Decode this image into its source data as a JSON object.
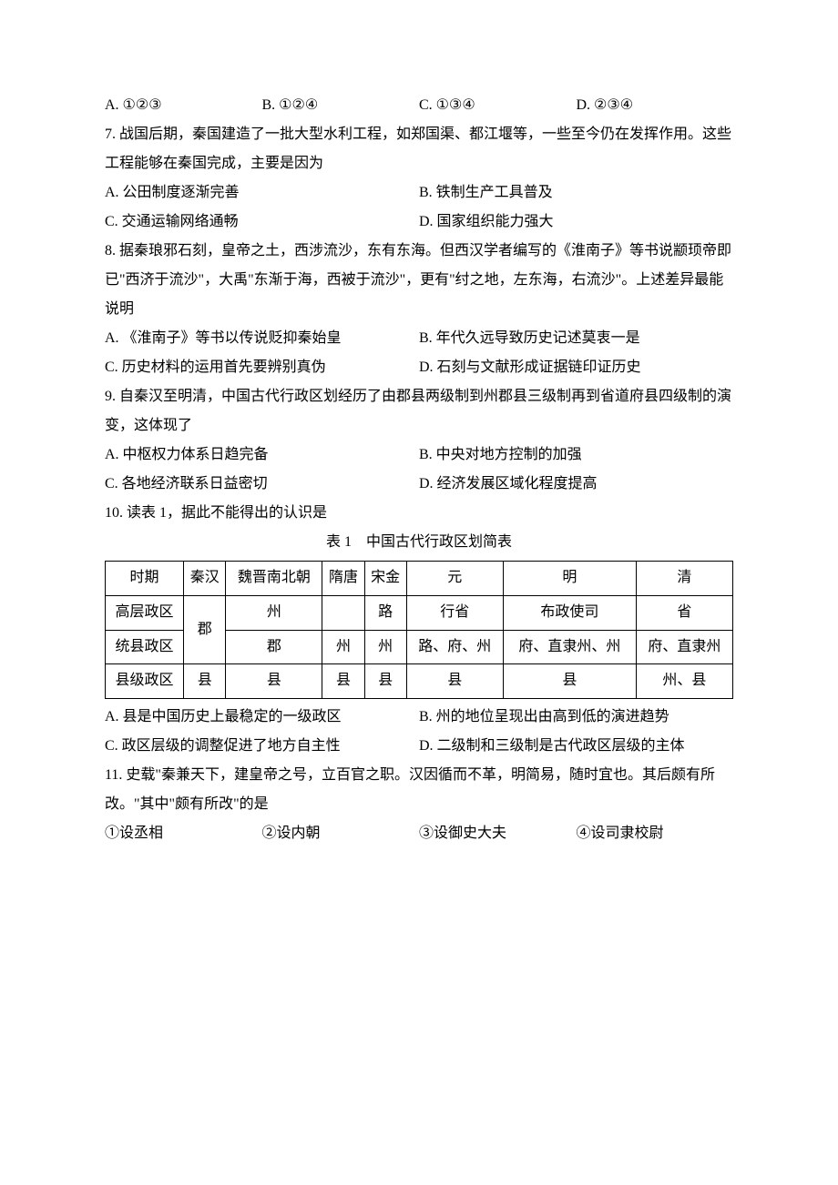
{
  "q6": {
    "opts": [
      "A. ①②③",
      "B. ①②④",
      "C. ①③④",
      "D. ②③④"
    ]
  },
  "q7": {
    "stem1": "7. 战国后期，秦国建造了一批大型水利工程，如郑国渠、都江堰等，一些至今仍在发挥作用。这些工程能够在秦国完成，主要是因为",
    "opts": [
      "A. 公田制度逐渐完善",
      "B. 铁制生产工具普及",
      "C. 交通运输网络通畅",
      "D. 国家组织能力强大"
    ]
  },
  "q8": {
    "stem1": "8. 据秦琅邪石刻，皇帝之土，西涉流沙，东有东海。但西汉学者编写的《淮南子》等书说颛顼帝即已\"西济于流沙\"，大禹\"东渐于海，西被于流沙\"，更有\"纣之地，左东海，右流沙\"。上述差异最能说明",
    "opts": [
      "A. 《淮南子》等书以传说贬抑秦始皇",
      "B. 年代久远导致历史记述莫衷一是",
      "C. 历史材料的运用首先要辨别真伪",
      "D. 石刻与文献形成证据链印证历史"
    ]
  },
  "q9": {
    "stem1": "9. 自秦汉至明清，中国古代行政区划经历了由郡县两级制到州郡县三级制再到省道府县四级制的演变，这体现了",
    "opts": [
      "A. 中枢权力体系日趋完备",
      "B. 中央对地方控制的加强",
      "C. 各地经济联系日益密切",
      "D. 经济发展区域化程度提高"
    ]
  },
  "q10": {
    "stem1": "10. 读表 1，据此不能得出的认识是",
    "caption": "表 1　中国古代行政区划简表",
    "headers": [
      "时期",
      "秦汉",
      "魏晋南北朝",
      "隋唐",
      "宋金",
      "元",
      "明",
      "清"
    ],
    "rows": [
      [
        "高层政区",
        "",
        "州",
        "",
        "路",
        "行省",
        "布政使司",
        "省"
      ],
      [
        "统县政区",
        "郡",
        "郡",
        "州",
        "州",
        "路、府、州",
        "府、直隶州、州",
        "府、直隶州"
      ],
      [
        "县级政区",
        "县",
        "县",
        "县",
        "县",
        "县",
        "县",
        "州、县"
      ]
    ],
    "opts": [
      "A. 县是中国历史上最稳定的一级政区",
      "B. 州的地位呈现出由高到低的演进趋势",
      "C. 政区层级的调整促进了地方自主性",
      "D. 二级制和三级制是古代政区层级的主体"
    ]
  },
  "q11": {
    "stem1": "11. 史载\"秦兼天下，建皇帝之号，立百官之职。汉因循而不革，明简易，随时宜也。其后颇有所改。\"其中\"颇有所改\"的是",
    "items": [
      "①设丞相",
      "②设内朝",
      "③设御史大夫",
      "④设司隶校尉"
    ]
  }
}
